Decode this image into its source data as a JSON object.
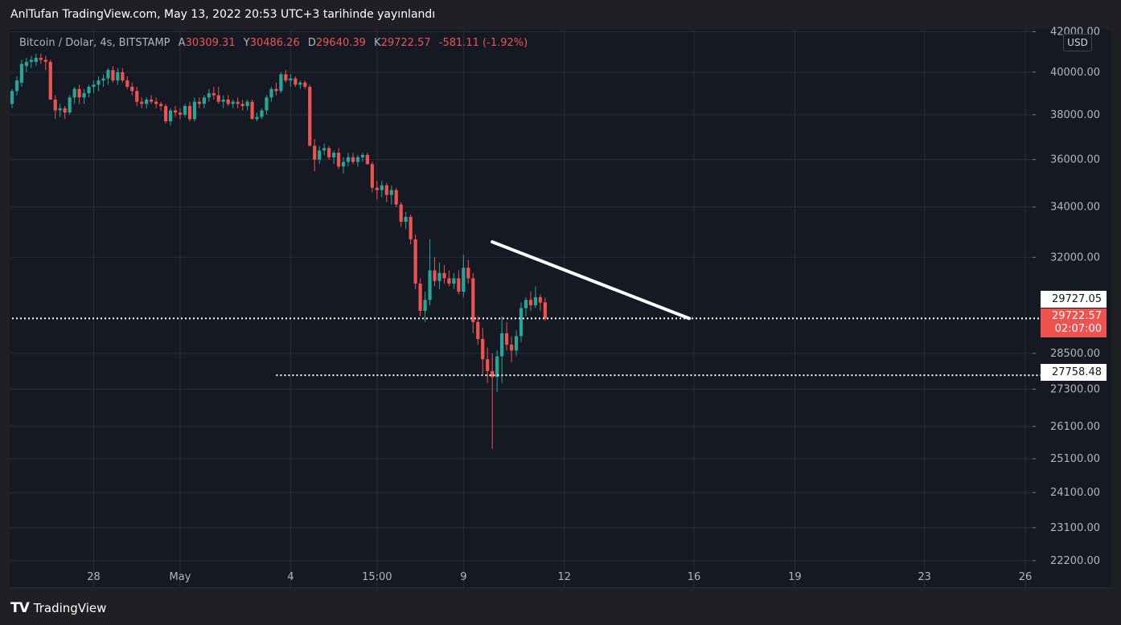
{
  "banner": {
    "text": "AnlTufan TradingView.com, May 13, 2022 20:53 UTC+3 tarihinde yayınlandı"
  },
  "legend": {
    "symbol": "Bitcoin / Dolar, 4s, BITSTAMP",
    "open_label": "A",
    "open": "30309.31",
    "high_label": "Y",
    "high": "30486.26",
    "low_label": "D",
    "low": "29640.39",
    "close_label": "K",
    "close": "29722.57",
    "change": "-581.11 (-1.92%)"
  },
  "currency": "USD",
  "footer": {
    "brand": "TradingView",
    "logo": "TV"
  },
  "colors": {
    "up": "#26a69a",
    "down": "#ef5350",
    "background": "#151924",
    "grid": "#2a2e39"
  },
  "tags": {
    "level_upper": "29727.05",
    "last_price": "29722.57",
    "countdown": "02:07:00",
    "level_lower": "27758.48"
  },
  "chart_data": {
    "type": "candlestick",
    "symbol": "Bitcoin / Dolar, 4s, BITSTAMP",
    "y_scale": "log",
    "ylim": [
      21500,
      42100
    ],
    "y_ticks": [
      22200,
      23100,
      24100,
      25100,
      26100,
      27300,
      28500,
      32000,
      34000,
      36000,
      38000,
      40000,
      42000
    ],
    "y_tick_labels": [
      "22200.00",
      "23100.00",
      "24100.00",
      "25100.00",
      "26100.00",
      "27300.00",
      "28500.00",
      "32000.00",
      "34000.00",
      "36000.00",
      "38000.00",
      "40000.00",
      "42000.00"
    ],
    "x_ticks": [
      {
        "label": "28",
        "bar": 17
      },
      {
        "label": "May",
        "bar": 35
      },
      {
        "label": "4",
        "bar": 58
      },
      {
        "label": "15:00",
        "bar": 76
      },
      {
        "label": "9",
        "bar": 94
      },
      {
        "label": "12",
        "bar": 115
      },
      {
        "label": "16",
        "bar": 142
      },
      {
        "label": "19",
        "bar": 163
      },
      {
        "label": "23",
        "bar": 190
      },
      {
        "label": "26",
        "bar": 211
      }
    ],
    "bars_range": [
      0,
      213
    ],
    "candles": [
      {
        "o": 38500,
        "h": 39200,
        "l": 38300,
        "c": 39100
      },
      {
        "o": 39100,
        "h": 39800,
        "l": 38900,
        "c": 39600
      },
      {
        "o": 39500,
        "h": 40600,
        "l": 39300,
        "c": 40400
      },
      {
        "o": 40300,
        "h": 40700,
        "l": 40000,
        "c": 40500
      },
      {
        "o": 40500,
        "h": 40800,
        "l": 40200,
        "c": 40600
      },
      {
        "o": 40500,
        "h": 40900,
        "l": 40300,
        "c": 40700
      },
      {
        "o": 40700,
        "h": 40900,
        "l": 40400,
        "c": 40600
      },
      {
        "o": 40600,
        "h": 40800,
        "l": 40100,
        "c": 40500
      },
      {
        "o": 40500,
        "h": 40600,
        "l": 38700,
        "c": 38700
      },
      {
        "o": 38700,
        "h": 38900,
        "l": 37800,
        "c": 38200
      },
      {
        "o": 38200,
        "h": 38500,
        "l": 37900,
        "c": 38300
      },
      {
        "o": 38300,
        "h": 38400,
        "l": 37800,
        "c": 38100
      },
      {
        "o": 38100,
        "h": 38900,
        "l": 38000,
        "c": 38800
      },
      {
        "o": 38800,
        "h": 39300,
        "l": 38500,
        "c": 39200
      },
      {
        "o": 39200,
        "h": 39400,
        "l": 38500,
        "c": 38800
      },
      {
        "o": 38800,
        "h": 39200,
        "l": 38500,
        "c": 39000
      },
      {
        "o": 39000,
        "h": 39400,
        "l": 38800,
        "c": 39300
      },
      {
        "o": 39300,
        "h": 39600,
        "l": 39000,
        "c": 39400
      },
      {
        "o": 39400,
        "h": 39800,
        "l": 39100,
        "c": 39600
      },
      {
        "o": 39600,
        "h": 39900,
        "l": 39300,
        "c": 39700
      },
      {
        "o": 39700,
        "h": 40200,
        "l": 39400,
        "c": 40100
      },
      {
        "o": 40100,
        "h": 40300,
        "l": 39500,
        "c": 39600
      },
      {
        "o": 39600,
        "h": 40200,
        "l": 39400,
        "c": 40000
      },
      {
        "o": 40000,
        "h": 40200,
        "l": 39500,
        "c": 39600
      },
      {
        "o": 39600,
        "h": 39800,
        "l": 39200,
        "c": 39300
      },
      {
        "o": 39300,
        "h": 39500,
        "l": 38900,
        "c": 39100
      },
      {
        "o": 39100,
        "h": 39300,
        "l": 38400,
        "c": 38600
      },
      {
        "o": 38600,
        "h": 38800,
        "l": 38300,
        "c": 38500
      },
      {
        "o": 38500,
        "h": 38800,
        "l": 38300,
        "c": 38700
      },
      {
        "o": 38700,
        "h": 38900,
        "l": 38500,
        "c": 38600
      },
      {
        "o": 38600,
        "h": 38800,
        "l": 38300,
        "c": 38500
      },
      {
        "o": 38500,
        "h": 38600,
        "l": 38200,
        "c": 38400
      },
      {
        "o": 38400,
        "h": 38500,
        "l": 37600,
        "c": 37700
      },
      {
        "o": 37700,
        "h": 38300,
        "l": 37500,
        "c": 38200
      },
      {
        "o": 38200,
        "h": 38400,
        "l": 37900,
        "c": 38100
      },
      {
        "o": 38100,
        "h": 38300,
        "l": 37800,
        "c": 38000
      },
      {
        "o": 38000,
        "h": 38500,
        "l": 37900,
        "c": 38400
      },
      {
        "o": 38400,
        "h": 38600,
        "l": 37700,
        "c": 37800
      },
      {
        "o": 37800,
        "h": 38800,
        "l": 37700,
        "c": 38600
      },
      {
        "o": 38600,
        "h": 38800,
        "l": 38300,
        "c": 38500
      },
      {
        "o": 38500,
        "h": 38900,
        "l": 38300,
        "c": 38800
      },
      {
        "o": 38800,
        "h": 39200,
        "l": 38600,
        "c": 39000
      },
      {
        "o": 39000,
        "h": 39300,
        "l": 38700,
        "c": 38900
      },
      {
        "o": 38900,
        "h": 39300,
        "l": 38500,
        "c": 38600
      },
      {
        "o": 38600,
        "h": 38900,
        "l": 38300,
        "c": 38700
      },
      {
        "o": 38700,
        "h": 38900,
        "l": 38400,
        "c": 38500
      },
      {
        "o": 38500,
        "h": 38700,
        "l": 38300,
        "c": 38600
      },
      {
        "o": 38600,
        "h": 38800,
        "l": 38300,
        "c": 38500
      },
      {
        "o": 38500,
        "h": 38700,
        "l": 38200,
        "c": 38400
      },
      {
        "o": 38400,
        "h": 38700,
        "l": 38200,
        "c": 38600
      },
      {
        "o": 38600,
        "h": 38700,
        "l": 37800,
        "c": 37800
      },
      {
        "o": 37800,
        "h": 38100,
        "l": 37700,
        "c": 37900
      },
      {
        "o": 37900,
        "h": 38300,
        "l": 37800,
        "c": 38200
      },
      {
        "o": 38200,
        "h": 38900,
        "l": 38000,
        "c": 38800
      },
      {
        "o": 38800,
        "h": 39300,
        "l": 38600,
        "c": 39200
      },
      {
        "o": 39200,
        "h": 39500,
        "l": 38900,
        "c": 39100
      },
      {
        "o": 39100,
        "h": 40000,
        "l": 39000,
        "c": 39900
      },
      {
        "o": 39900,
        "h": 40100,
        "l": 39500,
        "c": 39600
      },
      {
        "o": 39600,
        "h": 39900,
        "l": 39300,
        "c": 39700
      },
      {
        "o": 39700,
        "h": 39800,
        "l": 39300,
        "c": 39400
      },
      {
        "o": 39400,
        "h": 39600,
        "l": 39200,
        "c": 39500
      },
      {
        "o": 39500,
        "h": 39600,
        "l": 39200,
        "c": 39300
      },
      {
        "o": 39300,
        "h": 39400,
        "l": 36600,
        "c": 36600
      },
      {
        "o": 36600,
        "h": 36900,
        "l": 35500,
        "c": 36000
      },
      {
        "o": 36000,
        "h": 36600,
        "l": 35800,
        "c": 36400
      },
      {
        "o": 36400,
        "h": 36700,
        "l": 36200,
        "c": 36500
      },
      {
        "o": 36500,
        "h": 36600,
        "l": 36000,
        "c": 36100
      },
      {
        "o": 36100,
        "h": 36400,
        "l": 35800,
        "c": 36300
      },
      {
        "o": 36300,
        "h": 36500,
        "l": 35600,
        "c": 35700
      },
      {
        "o": 35700,
        "h": 36100,
        "l": 35400,
        "c": 35900
      },
      {
        "o": 35900,
        "h": 36300,
        "l": 35700,
        "c": 36100
      },
      {
        "o": 36100,
        "h": 36300,
        "l": 35800,
        "c": 35900
      },
      {
        "o": 35900,
        "h": 36200,
        "l": 35700,
        "c": 36100
      },
      {
        "o": 36100,
        "h": 36300,
        "l": 35900,
        "c": 36200
      },
      {
        "o": 36200,
        "h": 36300,
        "l": 35800,
        "c": 35800
      },
      {
        "o": 35800,
        "h": 35900,
        "l": 34600,
        "c": 34800
      },
      {
        "o": 34800,
        "h": 35100,
        "l": 34300,
        "c": 34700
      },
      {
        "o": 34700,
        "h": 35100,
        "l": 34400,
        "c": 34900
      },
      {
        "o": 34900,
        "h": 35000,
        "l": 34200,
        "c": 34500
      },
      {
        "o": 34500,
        "h": 34900,
        "l": 34100,
        "c": 34700
      },
      {
        "o": 34700,
        "h": 34800,
        "l": 34000,
        "c": 34100
      },
      {
        "o": 34100,
        "h": 34200,
        "l": 33200,
        "c": 33400
      },
      {
        "o": 33400,
        "h": 33800,
        "l": 33100,
        "c": 33600
      },
      {
        "o": 33600,
        "h": 33700,
        "l": 32500,
        "c": 32700
      },
      {
        "o": 32700,
        "h": 32900,
        "l": 30800,
        "c": 31000
      },
      {
        "o": 31000,
        "h": 31200,
        "l": 29800,
        "c": 30000
      },
      {
        "o": 30000,
        "h": 30700,
        "l": 29600,
        "c": 30400
      },
      {
        "o": 30400,
        "h": 32700,
        "l": 30200,
        "c": 31500
      },
      {
        "o": 31500,
        "h": 32000,
        "l": 30900,
        "c": 31100
      },
      {
        "o": 31100,
        "h": 31800,
        "l": 30800,
        "c": 31400
      },
      {
        "o": 31400,
        "h": 31700,
        "l": 31000,
        "c": 31200
      },
      {
        "o": 31200,
        "h": 31500,
        "l": 30900,
        "c": 31000
      },
      {
        "o": 31000,
        "h": 31400,
        "l": 30800,
        "c": 31200
      },
      {
        "o": 31200,
        "h": 31500,
        "l": 30600,
        "c": 30700
      },
      {
        "o": 30700,
        "h": 32100,
        "l": 30500,
        "c": 31600
      },
      {
        "o": 31600,
        "h": 31900,
        "l": 31000,
        "c": 31200
      },
      {
        "o": 31200,
        "h": 31400,
        "l": 29200,
        "c": 29600
      },
      {
        "o": 29600,
        "h": 29800,
        "l": 28800,
        "c": 29000
      },
      {
        "o": 29000,
        "h": 29400,
        "l": 27800,
        "c": 28300
      },
      {
        "o": 28300,
        "h": 28700,
        "l": 27500,
        "c": 27900
      },
      {
        "o": 27900,
        "h": 28500,
        "l": 25400,
        "c": 27700
      },
      {
        "o": 27700,
        "h": 28600,
        "l": 27200,
        "c": 28400
      },
      {
        "o": 28400,
        "h": 29800,
        "l": 27500,
        "c": 29200
      },
      {
        "o": 29200,
        "h": 29600,
        "l": 28600,
        "c": 28800
      },
      {
        "o": 28800,
        "h": 29100,
        "l": 28200,
        "c": 28600
      },
      {
        "o": 28600,
        "h": 29300,
        "l": 28400,
        "c": 29100
      },
      {
        "o": 29100,
        "h": 30300,
        "l": 28900,
        "c": 30100
      },
      {
        "o": 30100,
        "h": 30500,
        "l": 29800,
        "c": 30400
      },
      {
        "o": 30400,
        "h": 30700,
        "l": 30000,
        "c": 30200
      },
      {
        "o": 30200,
        "h": 30900,
        "l": 30100,
        "c": 30500
      },
      {
        "o": 30500,
        "h": 30600,
        "l": 30000,
        "c": 30300
      },
      {
        "o": 30309,
        "h": 30486,
        "l": 29640,
        "c": 29723
      }
    ],
    "candle_start_bar": 0,
    "trendline": {
      "from": {
        "bar": 100,
        "price": 32600
      },
      "to": {
        "bar": 141,
        "price": 29727.05
      }
    },
    "level_upper": {
      "price": 29727.05,
      "from_bar": 0
    },
    "level_lower": {
      "price": 27758.48,
      "from_bar": 55
    }
  }
}
